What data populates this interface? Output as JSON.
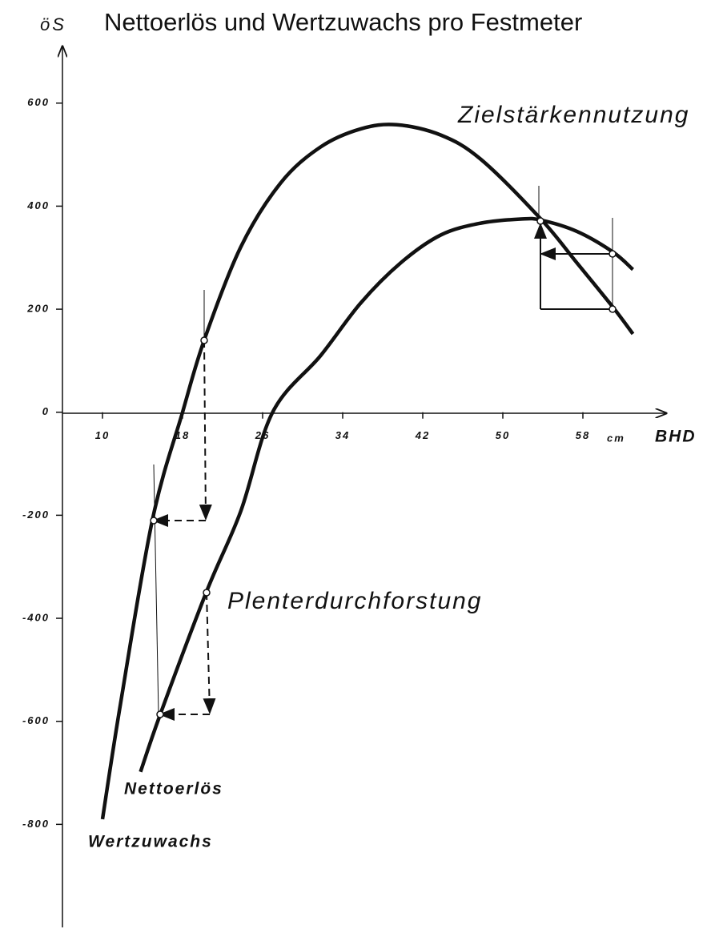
{
  "chart_data": {
    "type": "line",
    "title": "Nettoerlös und Wertzuwachs pro Festmeter",
    "y_label": "öS",
    "x_label": "BHD",
    "x_unit": "cm",
    "annotations": [
      "Zielstärkennutzung",
      "Plenterdurchforstung"
    ],
    "xlim": [
      6,
      66
    ],
    "ylim": [
      -1000,
      710
    ],
    "xticks": [
      10,
      18,
      26,
      34,
      42,
      50,
      58
    ],
    "yticks": [
      600,
      400,
      200,
      0,
      -200,
      -400,
      -600,
      -800
    ],
    "series": [
      {
        "name": "Wertzuwachs",
        "color": "#111111",
        "x": [
          10,
          11.8,
          15,
          18,
          20.2,
          23.8,
          27.8,
          31.8,
          35.8,
          39.4,
          43.8,
          47.8,
          53.8,
          57.4,
          61,
          63
        ],
        "values": [
          -790,
          -566,
          -208,
          0,
          142,
          320,
          445,
          515,
          550,
          558,
          538,
          491,
          375,
          290,
          204,
          152
        ]
      },
      {
        "name": "Nettoerlös",
        "color": "#111111",
        "x": [
          13.8,
          15.8,
          20.4,
          23.8,
          27,
          31.8,
          35.8,
          39.8,
          43.8,
          47.8,
          51.8,
          53.8,
          57.4,
          61,
          63
        ],
        "values": [
          -698,
          -585,
          -348,
          -193,
          0,
          110,
          212,
          290,
          344,
          367,
          375,
          373,
          351,
          311,
          277
        ]
      }
    ]
  }
}
